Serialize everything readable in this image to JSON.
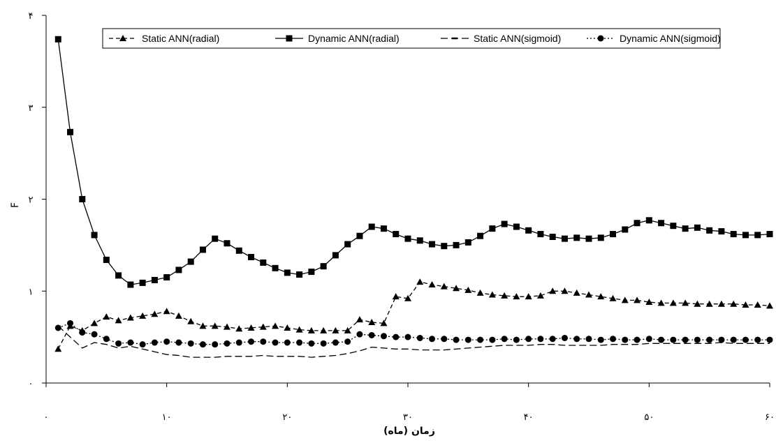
{
  "chart_data": {
    "type": "line",
    "xlabel": "زمان (ماه)",
    "ylabel": "F",
    "xlim": [
      0,
      60
    ],
    "ylim": [
      0,
      4
    ],
    "xticks": [
      0,
      10,
      20,
      30,
      40,
      50,
      60
    ],
    "xtick_labels": [
      "۰",
      "۱۰",
      "۲۰",
      "۳۰",
      "۴۰",
      "۵۰",
      "۶۰"
    ],
    "yticks": [
      0,
      1,
      2,
      3,
      4
    ],
    "ytick_labels": [
      "۰",
      "۱",
      "۲",
      "۳",
      "۴"
    ],
    "grid": false,
    "legend_position": "top",
    "x": [
      1,
      2,
      3,
      4,
      5,
      6,
      7,
      8,
      9,
      10,
      11,
      12,
      13,
      14,
      15,
      16,
      17,
      18,
      19,
      20,
      21,
      22,
      23,
      24,
      25,
      26,
      27,
      28,
      29,
      30,
      31,
      32,
      33,
      34,
      35,
      36,
      37,
      38,
      39,
      40,
      41,
      42,
      43,
      44,
      45,
      46,
      47,
      48,
      49,
      50,
      51,
      52,
      53,
      54,
      55,
      56,
      57,
      58,
      59,
      60
    ],
    "series": [
      {
        "name": "Static ANN(radial)",
        "line_style": "dashed",
        "marker": "triangle",
        "values": [
          0.37,
          0.62,
          0.57,
          0.65,
          0.72,
          0.68,
          0.71,
          0.73,
          0.75,
          0.78,
          0.73,
          0.67,
          0.62,
          0.62,
          0.61,
          0.59,
          0.6,
          0.61,
          0.62,
          0.6,
          0.58,
          0.57,
          0.57,
          0.57,
          0.57,
          0.69,
          0.66,
          0.65,
          0.94,
          0.92,
          1.1,
          1.07,
          1.05,
          1.03,
          1.01,
          0.98,
          0.96,
          0.95,
          0.94,
          0.94,
          0.95,
          1.0,
          1.0,
          0.98,
          0.96,
          0.94,
          0.92,
          0.9,
          0.9,
          0.88,
          0.87,
          0.87,
          0.87,
          0.86,
          0.86,
          0.86,
          0.86,
          0.85,
          0.85,
          0.84
        ]
      },
      {
        "name": "Dynamic ANN(radial)",
        "line_style": "solid",
        "marker": "square",
        "values": [
          3.74,
          2.73,
          2.0,
          1.61,
          1.34,
          1.17,
          1.07,
          1.09,
          1.12,
          1.15,
          1.23,
          1.32,
          1.45,
          1.57,
          1.52,
          1.44,
          1.37,
          1.31,
          1.25,
          1.2,
          1.18,
          1.21,
          1.27,
          1.39,
          1.51,
          1.6,
          1.7,
          1.68,
          1.62,
          1.57,
          1.55,
          1.51,
          1.49,
          1.5,
          1.53,
          1.6,
          1.68,
          1.73,
          1.7,
          1.66,
          1.62,
          1.59,
          1.57,
          1.58,
          1.57,
          1.58,
          1.62,
          1.67,
          1.74,
          1.77,
          1.74,
          1.71,
          1.68,
          1.69,
          1.66,
          1.65,
          1.62,
          1.61,
          1.61,
          1.62
        ]
      },
      {
        "name": "Static ANN(sigmoid)",
        "line_style": "long-dash",
        "marker": "dash",
        "values": [
          0.62,
          0.5,
          0.38,
          0.44,
          0.42,
          0.38,
          0.4,
          0.37,
          0.34,
          0.31,
          0.3,
          0.28,
          0.28,
          0.28,
          0.29,
          0.29,
          0.29,
          0.3,
          0.29,
          0.29,
          0.29,
          0.28,
          0.29,
          0.3,
          0.32,
          0.35,
          0.39,
          0.38,
          0.37,
          0.37,
          0.36,
          0.36,
          0.36,
          0.37,
          0.38,
          0.39,
          0.4,
          0.41,
          0.41,
          0.41,
          0.42,
          0.42,
          0.41,
          0.41,
          0.41,
          0.41,
          0.42,
          0.42,
          0.42,
          0.43,
          0.43,
          0.43,
          0.43,
          0.43,
          0.43,
          0.44,
          0.43,
          0.43,
          0.43,
          0.43
        ]
      },
      {
        "name": "Dynamic ANN(sigmoid)",
        "line_style": "dotted",
        "marker": "circle",
        "values": [
          0.6,
          0.65,
          0.55,
          0.53,
          0.48,
          0.43,
          0.44,
          0.42,
          0.44,
          0.45,
          0.44,
          0.43,
          0.42,
          0.42,
          0.43,
          0.44,
          0.45,
          0.45,
          0.44,
          0.44,
          0.44,
          0.43,
          0.43,
          0.44,
          0.45,
          0.53,
          0.52,
          0.51,
          0.5,
          0.5,
          0.49,
          0.48,
          0.48,
          0.47,
          0.47,
          0.47,
          0.47,
          0.48,
          0.47,
          0.48,
          0.48,
          0.48,
          0.49,
          0.48,
          0.48,
          0.47,
          0.48,
          0.47,
          0.47,
          0.48,
          0.47,
          0.47,
          0.47,
          0.47,
          0.47,
          0.47,
          0.47,
          0.47,
          0.47,
          0.47
        ]
      }
    ]
  }
}
